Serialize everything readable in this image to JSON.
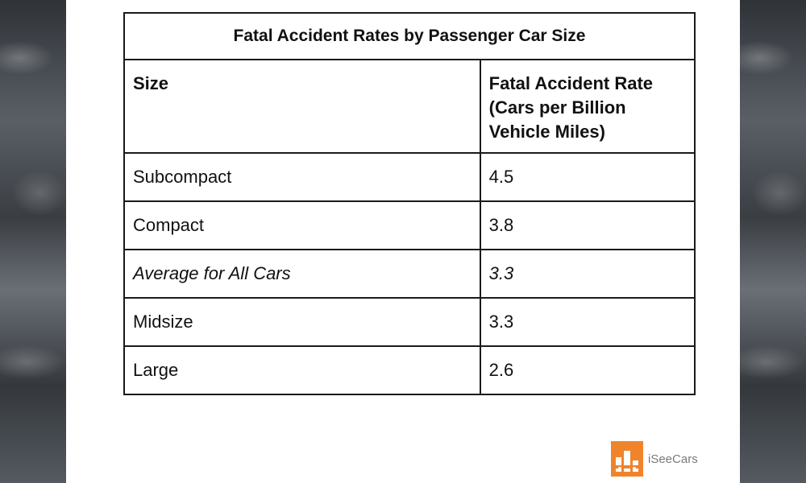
{
  "table": {
    "title": "Fatal Accident Rates by Passenger Car Size",
    "headers": [
      "Size",
      "Fatal Accident Rate (Cars per Billion Vehicle Miles)"
    ],
    "rows": [
      {
        "size": "Subcompact",
        "rate": "4.5",
        "italic": false
      },
      {
        "size": "Compact",
        "rate": "3.8",
        "italic": false
      },
      {
        "size": "Average for All Cars",
        "rate": "3.3",
        "italic": true
      },
      {
        "size": "Midsize",
        "rate": "3.3",
        "italic": false
      },
      {
        "size": "Large",
        "rate": "2.6",
        "italic": false
      }
    ]
  },
  "logo": {
    "text": "iSeeCars",
    "icon": "iseecars-logo-icon",
    "color": "#f0842c"
  }
}
